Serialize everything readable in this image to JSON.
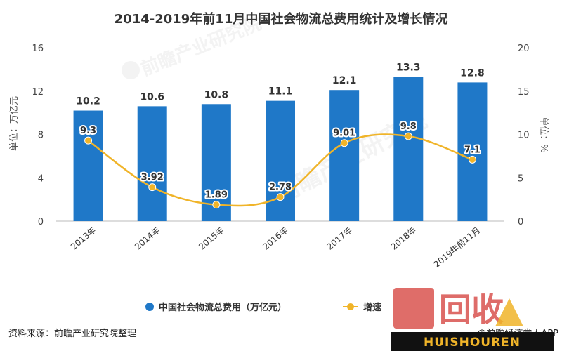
{
  "colors": {
    "bar": "#1f78c8",
    "line": "#f0b429",
    "watermark_logo": "#d9534f",
    "watermark_banner": "#111111"
  },
  "footer": {
    "source": "资料来源：前瞻产业研究院整理",
    "credit": "@前瞻经济学人APP"
  },
  "watermarks": {
    "brand": "前瞻产业研究院",
    "logo_text": "回收",
    "logo_sub": "HUISHOUREN"
  },
  "chart_data": {
    "type": "bar",
    "title": "2014-2019年前11月中国社会物流总费用统计及增长情况",
    "categories": [
      "2013年",
      "2014年",
      "2015年",
      "2016年",
      "2017年",
      "2018年",
      "2019年前11月"
    ],
    "series": [
      {
        "name": "中国社会物流总费用（万亿元）",
        "type": "bar",
        "axis": "left",
        "values": [
          10.2,
          10.6,
          10.8,
          11.1,
          12.1,
          13.3,
          12.8
        ],
        "labels": [
          "10.2",
          "10.6",
          "10.8",
          "11.1",
          "12.1",
          "13.3",
          "12.8"
        ]
      },
      {
        "name": "增速",
        "type": "line",
        "axis": "right",
        "values": [
          9.3,
          3.92,
          1.89,
          2.78,
          9.01,
          9.8,
          7.1
        ],
        "labels": [
          "9.3",
          "3.92",
          "1.89",
          "2.78",
          "9.01",
          "9.8",
          "7.1"
        ]
      }
    ],
    "ylabel_left": "单位：万亿元",
    "ylabel_right": "单位：%",
    "ylim_left": [
      0,
      16
    ],
    "yticks_left": [
      "0",
      "4",
      "8",
      "12",
      "16"
    ],
    "ylim_right": [
      0,
      20
    ],
    "yticks_right": [
      "0",
      "5",
      "10",
      "15",
      "20"
    ],
    "grid": false,
    "legend_position": "bottom"
  }
}
